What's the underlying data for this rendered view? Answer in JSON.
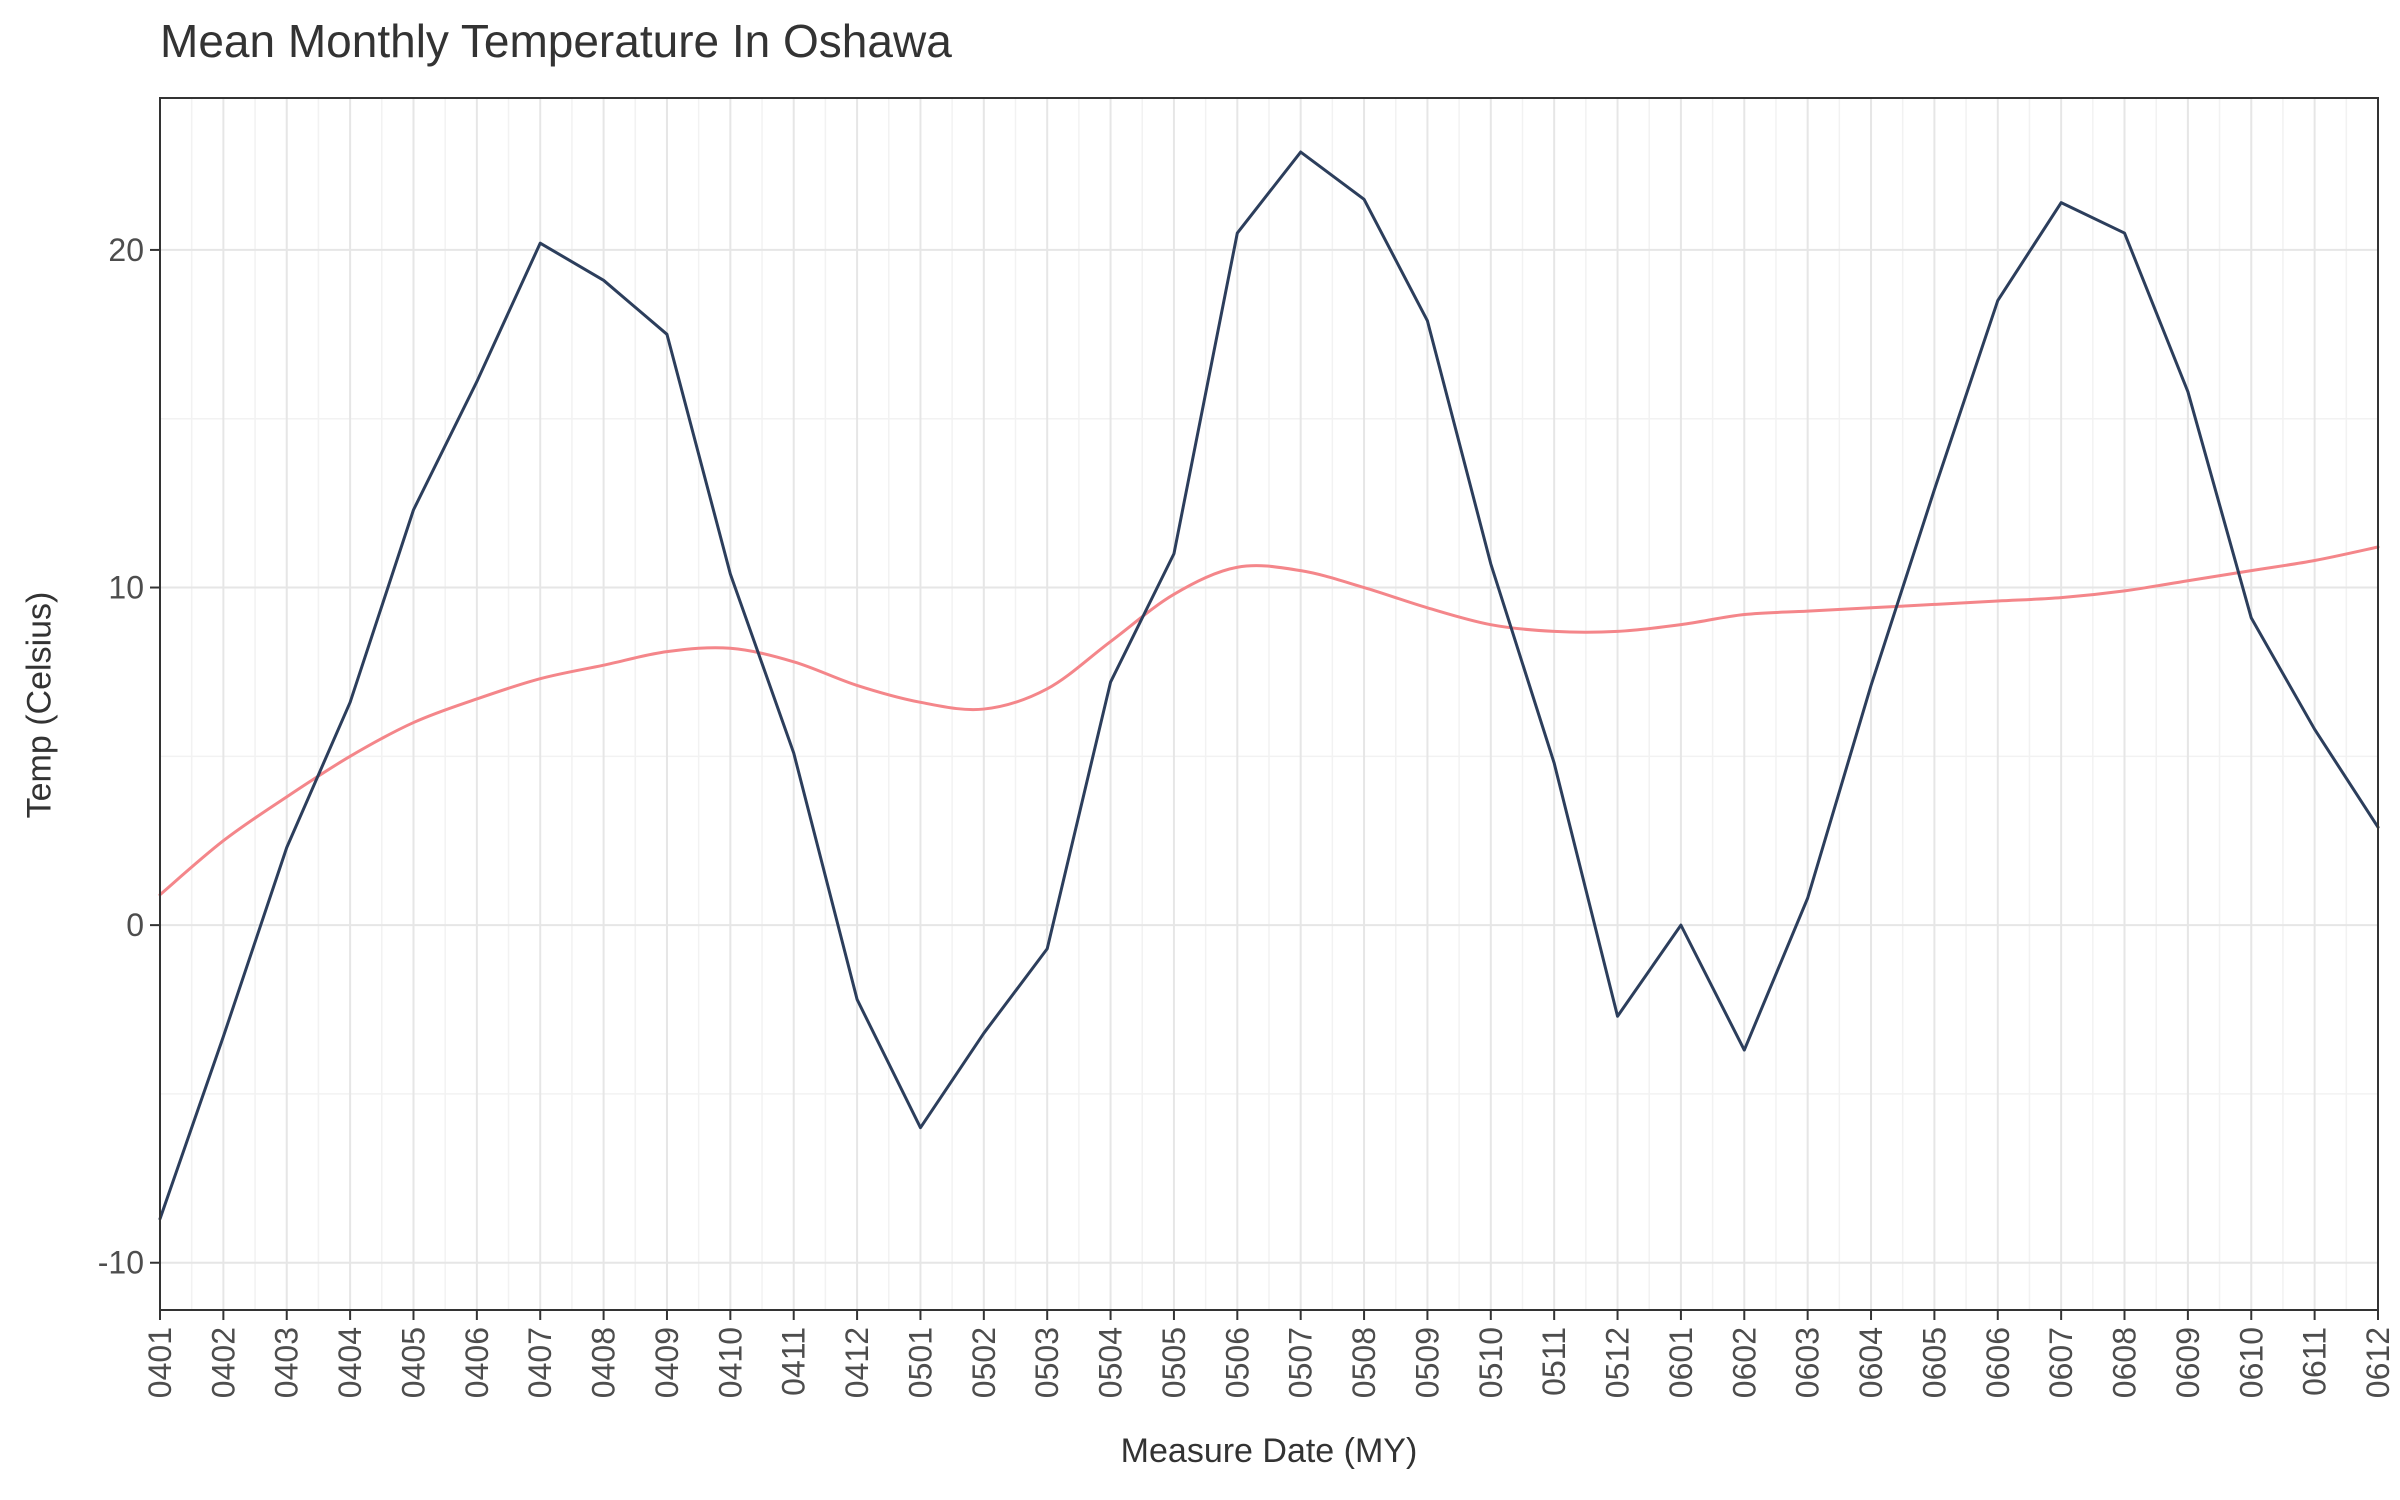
{
  "chart_data": {
    "type": "line",
    "title": "Mean Monthly Temperature In Oshawa",
    "xlabel": "Measure Date (MY)",
    "ylabel": "Temp (Celsius)",
    "categories": [
      "0401",
      "0402",
      "0403",
      "0404",
      "0405",
      "0406",
      "0407",
      "0408",
      "0409",
      "0410",
      "0411",
      "0412",
      "0501",
      "0502",
      "0503",
      "0504",
      "0505",
      "0506",
      "0507",
      "0508",
      "0509",
      "0510",
      "0511",
      "0512",
      "0601",
      "0602",
      "0603",
      "0604",
      "0605",
      "0606",
      "0607",
      "0608",
      "0609",
      "0610",
      "0611",
      "0612"
    ],
    "y_ticks": [
      -10,
      0,
      10,
      20
    ],
    "y_tick_labels": [
      "-10",
      "0",
      "10",
      "20"
    ],
    "ylim": [
      -11.4,
      24.5
    ],
    "grid": true,
    "series": [
      {
        "role": "monthly-mean",
        "color": "#2c3e5c",
        "values": [
          -8.7,
          -3.3,
          2.3,
          6.6,
          12.3,
          16.1,
          20.2,
          19.1,
          17.5,
          10.4,
          5.1,
          -2.2,
          -6.0,
          -3.2,
          -0.7,
          7.2,
          11.0,
          20.5,
          22.9,
          21.5,
          17.9,
          10.7,
          4.8,
          -2.7,
          0.0,
          -3.7,
          0.8,
          7.1,
          12.9,
          18.5,
          21.4,
          20.5,
          15.8,
          9.1,
          5.8,
          2.9
        ]
      },
      {
        "role": "smoothed-trend",
        "color": "#f4868a",
        "values": [
          0.9,
          2.5,
          3.8,
          5.0,
          6.0,
          6.7,
          7.3,
          7.7,
          8.1,
          8.2,
          7.8,
          7.1,
          6.6,
          6.4,
          7.0,
          8.4,
          9.8,
          10.6,
          10.5,
          10.0,
          9.4,
          8.9,
          8.7,
          8.7,
          8.9,
          9.2,
          9.3,
          9.4,
          9.5,
          9.6,
          9.7,
          9.9,
          10.2,
          10.5,
          10.8,
          11.2
        ]
      }
    ]
  }
}
